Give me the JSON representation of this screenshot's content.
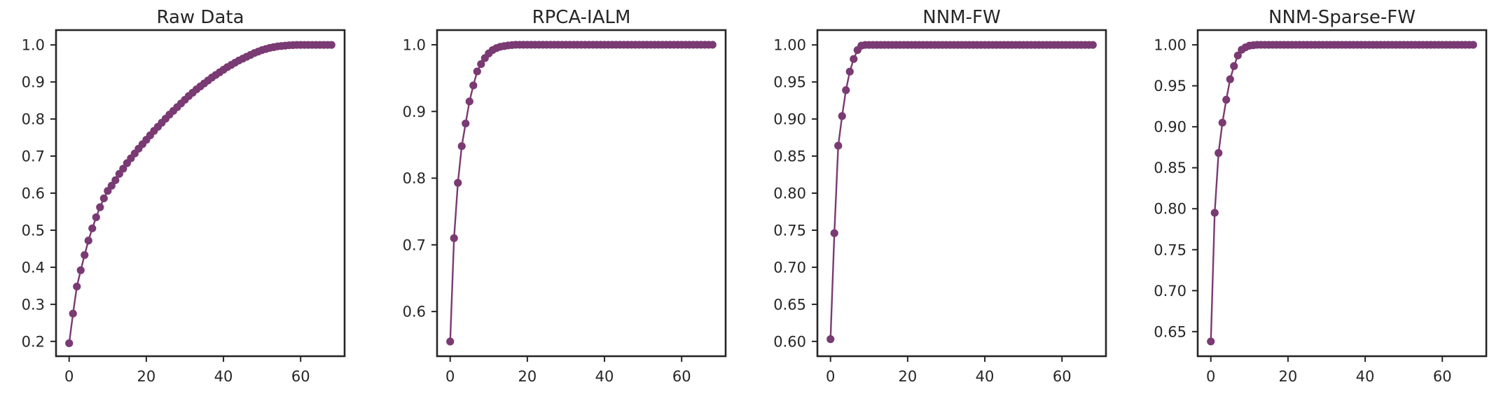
{
  "chart_data": [
    {
      "type": "line",
      "title": "Raw Data",
      "color": "#7a3a73",
      "xlim": [
        -3.4,
        71.4
      ],
      "ylim": [
        0.16,
        1.04
      ],
      "xticks": [
        0,
        20,
        40,
        60
      ],
      "xtick_labels": [
        "0",
        "20",
        "40",
        "60"
      ],
      "yticks": [
        0.2,
        0.3,
        0.4,
        0.5,
        0.6,
        0.7,
        0.8,
        0.9,
        1.0
      ],
      "ytick_labels": [
        "0.2",
        "0.3",
        "0.4",
        "0.5",
        "0.6",
        "0.7",
        "0.8",
        "0.9",
        "1.0"
      ],
      "x": [
        0,
        1,
        2,
        3,
        4,
        5,
        6,
        7,
        8,
        9,
        10,
        11,
        12,
        13,
        14,
        15,
        16,
        17,
        18,
        19,
        20,
        21,
        22,
        23,
        24,
        25,
        26,
        27,
        28,
        29,
        30,
        31,
        32,
        33,
        34,
        35,
        36,
        37,
        38,
        39,
        40,
        41,
        42,
        43,
        44,
        45,
        46,
        47,
        48,
        49,
        50,
        51,
        52,
        53,
        54,
        55,
        56,
        57,
        58,
        59,
        60,
        61,
        62,
        63,
        64,
        65,
        66,
        67,
        68
      ],
      "y": [
        0.195,
        0.275,
        0.348,
        0.392,
        0.433,
        0.472,
        0.505,
        0.535,
        0.562,
        0.586,
        0.606,
        0.62,
        0.635,
        0.652,
        0.666,
        0.681,
        0.694,
        0.707,
        0.72,
        0.732,
        0.744,
        0.756,
        0.768,
        0.779,
        0.79,
        0.801,
        0.812,
        0.822,
        0.832,
        0.842,
        0.852,
        0.862,
        0.871,
        0.88,
        0.888,
        0.896,
        0.904,
        0.912,
        0.919,
        0.926,
        0.933,
        0.94,
        0.946,
        0.952,
        0.958,
        0.963,
        0.968,
        0.973,
        0.978,
        0.982,
        0.986,
        0.989,
        0.992,
        0.994,
        0.996,
        0.997,
        0.998,
        0.999,
        0.9995,
        1.0,
        1.0,
        1.0,
        1.0,
        1.0,
        1.0,
        1.0,
        1.0,
        1.0,
        1.0
      ]
    },
    {
      "type": "line",
      "title": "RPCA-IALM",
      "color": "#7a3a73",
      "xlim": [
        -3.4,
        71.4
      ],
      "ylim": [
        0.533,
        1.022
      ],
      "xticks": [
        0,
        20,
        40,
        60
      ],
      "xtick_labels": [
        "0",
        "20",
        "40",
        "60"
      ],
      "yticks": [
        0.6,
        0.7,
        0.8,
        0.9,
        1.0
      ],
      "ytick_labels": [
        "0.6",
        "0.7",
        "0.8",
        "0.9",
        "1.0"
      ],
      "x": [
        0,
        1,
        2,
        3,
        4,
        5,
        6,
        7,
        8,
        9,
        10,
        11,
        12,
        13,
        14,
        15,
        16,
        17,
        18,
        19,
        20,
        21,
        22,
        23,
        24,
        25,
        26,
        27,
        28,
        29,
        30,
        31,
        32,
        33,
        34,
        35,
        36,
        37,
        38,
        39,
        40,
        41,
        42,
        43,
        44,
        45,
        46,
        47,
        48,
        49,
        50,
        51,
        52,
        53,
        54,
        55,
        56,
        57,
        58,
        59,
        60,
        61,
        62,
        63,
        64,
        65,
        66,
        67,
        68
      ],
      "y": [
        0.555,
        0.71,
        0.793,
        0.848,
        0.882,
        0.915,
        0.939,
        0.96,
        0.971,
        0.98,
        0.987,
        0.992,
        0.995,
        0.997,
        0.998,
        0.999,
        0.9995,
        1.0,
        1.0,
        1.0,
        1.0,
        1.0,
        1.0,
        1.0,
        1.0,
        1.0,
        1.0,
        1.0,
        1.0,
        1.0,
        1.0,
        1.0,
        1.0,
        1.0,
        1.0,
        1.0,
        1.0,
        1.0,
        1.0,
        1.0,
        1.0,
        1.0,
        1.0,
        1.0,
        1.0,
        1.0,
        1.0,
        1.0,
        1.0,
        1.0,
        1.0,
        1.0,
        1.0,
        1.0,
        1.0,
        1.0,
        1.0,
        1.0,
        1.0,
        1.0,
        1.0,
        1.0,
        1.0,
        1.0,
        1.0,
        1.0,
        1.0,
        1.0,
        1.0
      ]
    },
    {
      "type": "line",
      "title": "NNM-FW",
      "color": "#7a3a73",
      "xlim": [
        -3.4,
        71.4
      ],
      "ylim": [
        0.58,
        1.02
      ],
      "xticks": [
        0,
        20,
        40,
        60
      ],
      "xtick_labels": [
        "0",
        "20",
        "40",
        "60"
      ],
      "yticks": [
        0.6,
        0.65,
        0.7,
        0.75,
        0.8,
        0.85,
        0.9,
        0.95,
        1.0
      ],
      "ytick_labels": [
        "0.60",
        "0.65",
        "0.70",
        "0.75",
        "0.80",
        "0.85",
        "0.90",
        "0.95",
        "1.00"
      ],
      "x": [
        0,
        1,
        2,
        3,
        4,
        5,
        6,
        7,
        8,
        9,
        10,
        11,
        12,
        13,
        14,
        15,
        16,
        17,
        18,
        19,
        20,
        21,
        22,
        23,
        24,
        25,
        26,
        27,
        28,
        29,
        30,
        31,
        32,
        33,
        34,
        35,
        36,
        37,
        38,
        39,
        40,
        41,
        42,
        43,
        44,
        45,
        46,
        47,
        48,
        49,
        50,
        51,
        52,
        53,
        54,
        55,
        56,
        57,
        58,
        59,
        60,
        61,
        62,
        63,
        64,
        65,
        66,
        67,
        68
      ],
      "y": [
        0.603,
        0.746,
        0.864,
        0.904,
        0.939,
        0.964,
        0.981,
        0.993,
        0.999,
        1.0,
        1.0,
        1.0,
        1.0,
        1.0,
        1.0,
        1.0,
        1.0,
        1.0,
        1.0,
        1.0,
        1.0,
        1.0,
        1.0,
        1.0,
        1.0,
        1.0,
        1.0,
        1.0,
        1.0,
        1.0,
        1.0,
        1.0,
        1.0,
        1.0,
        1.0,
        1.0,
        1.0,
        1.0,
        1.0,
        1.0,
        1.0,
        1.0,
        1.0,
        1.0,
        1.0,
        1.0,
        1.0,
        1.0,
        1.0,
        1.0,
        1.0,
        1.0,
        1.0,
        1.0,
        1.0,
        1.0,
        1.0,
        1.0,
        1.0,
        1.0,
        1.0,
        1.0,
        1.0,
        1.0,
        1.0,
        1.0,
        1.0,
        1.0,
        1.0
      ]
    },
    {
      "type": "line",
      "title": "NNM-Sparse-FW",
      "color": "#7a3a73",
      "xlim": [
        -3.4,
        71.4
      ],
      "ylim": [
        0.62,
        1.018
      ],
      "xticks": [
        0,
        20,
        40,
        60
      ],
      "xtick_labels": [
        "0",
        "20",
        "40",
        "60"
      ],
      "yticks": [
        0.65,
        0.7,
        0.75,
        0.8,
        0.85,
        0.9,
        0.95,
        1.0
      ],
      "ytick_labels": [
        "0.65",
        "0.70",
        "0.75",
        "0.80",
        "0.85",
        "0.90",
        "0.95",
        "1.00"
      ],
      "x": [
        0,
        1,
        2,
        3,
        4,
        5,
        6,
        7,
        8,
        9,
        10,
        11,
        12,
        13,
        14,
        15,
        16,
        17,
        18,
        19,
        20,
        21,
        22,
        23,
        24,
        25,
        26,
        27,
        28,
        29,
        30,
        31,
        32,
        33,
        34,
        35,
        36,
        37,
        38,
        39,
        40,
        41,
        42,
        43,
        44,
        45,
        46,
        47,
        48,
        49,
        50,
        51,
        52,
        53,
        54,
        55,
        56,
        57,
        58,
        59,
        60,
        61,
        62,
        63,
        64,
        65,
        66,
        67,
        68
      ],
      "y": [
        0.638,
        0.795,
        0.868,
        0.905,
        0.933,
        0.958,
        0.974,
        0.987,
        0.994,
        0.997,
        0.999,
        0.9995,
        1.0,
        1.0,
        1.0,
        1.0,
        1.0,
        1.0,
        1.0,
        1.0,
        1.0,
        1.0,
        1.0,
        1.0,
        1.0,
        1.0,
        1.0,
        1.0,
        1.0,
        1.0,
        1.0,
        1.0,
        1.0,
        1.0,
        1.0,
        1.0,
        1.0,
        1.0,
        1.0,
        1.0,
        1.0,
        1.0,
        1.0,
        1.0,
        1.0,
        1.0,
        1.0,
        1.0,
        1.0,
        1.0,
        1.0,
        1.0,
        1.0,
        1.0,
        1.0,
        1.0,
        1.0,
        1.0,
        1.0,
        1.0,
        1.0,
        1.0,
        1.0,
        1.0,
        1.0,
        1.0,
        1.0,
        1.0,
        1.0
      ]
    }
  ]
}
